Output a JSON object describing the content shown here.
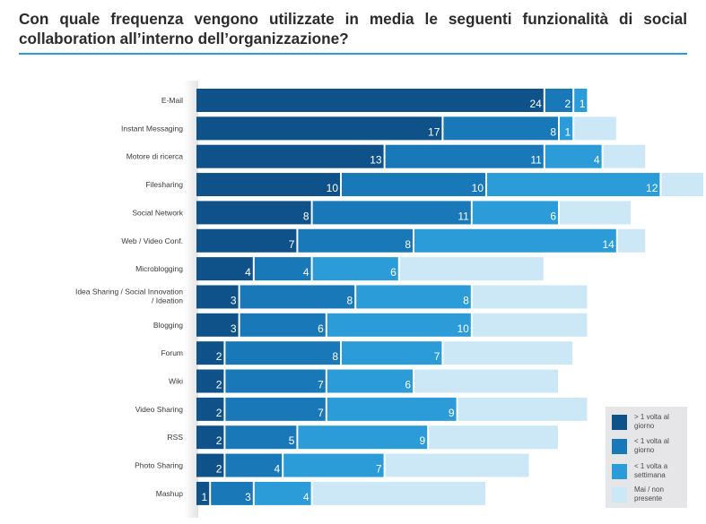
{
  "title": "Con quale frequenza vengono utilizzate in media le seguenti funzionalità di social collaboration all’interno dell’organizzazione?",
  "chart_data": {
    "type": "bar",
    "orientation": "horizontal",
    "stacked": true,
    "title": "Con quale frequenza vengono utilizzate in media le seguenti funzionalità di social collaboration all’interno dell’organizzazione?",
    "xlabel": "",
    "ylabel": "",
    "grid": false,
    "legend_position": "bottom-right",
    "categories": [
      "E-Mail",
      "Instant Messaging",
      "Motore di ricerca",
      "Filesharing",
      "Social Network",
      "Web / Video Conf.",
      "Microblogging",
      "Idea Sharing / Social Innovation / Ideation",
      "Blogging",
      "Forum",
      "Wiki",
      "Video Sharing",
      "RSS",
      "Photo Sharing",
      "Mashup"
    ],
    "series": [
      {
        "name": "> 1 volta al giorno",
        "color": "#0f5289",
        "values": [
          24,
          17,
          13,
          10,
          8,
          7,
          4,
          3,
          3,
          2,
          2,
          2,
          2,
          2,
          1
        ],
        "labeled": true
      },
      {
        "name": "< 1 volta al giorno",
        "color": "#1878b8",
        "values": [
          2,
          8,
          11,
          10,
          11,
          8,
          4,
          8,
          6,
          8,
          7,
          7,
          5,
          4,
          3
        ],
        "labeled": true
      },
      {
        "name": "< 1 volta a settimana",
        "color": "#2b9cd8",
        "values": [
          1,
          1,
          4,
          12,
          6,
          14,
          6,
          8,
          10,
          7,
          6,
          9,
          9,
          7,
          4
        ],
        "labeled": true
      },
      {
        "name": "Mai / non presente",
        "color": "#cce8f7",
        "values": [
          0,
          3,
          3,
          3,
          5,
          2,
          10,
          8,
          8,
          9,
          10,
          9,
          9,
          10,
          12
        ],
        "labeled": false
      }
    ]
  },
  "legend": [
    {
      "label_line1": "> 1 volta al",
      "label_line2": "giorno",
      "color": "#0f5289"
    },
    {
      "label_line1": "< 1 volta al",
      "label_line2": "giorno",
      "color": "#1878b8"
    },
    {
      "label_line1": "< 1 volta a",
      "label_line2": "settimana",
      "color": "#2b9cd8"
    },
    {
      "label_line1": "Mai / non",
      "label_line2": "presente",
      "color": "#cce8f7"
    }
  ]
}
